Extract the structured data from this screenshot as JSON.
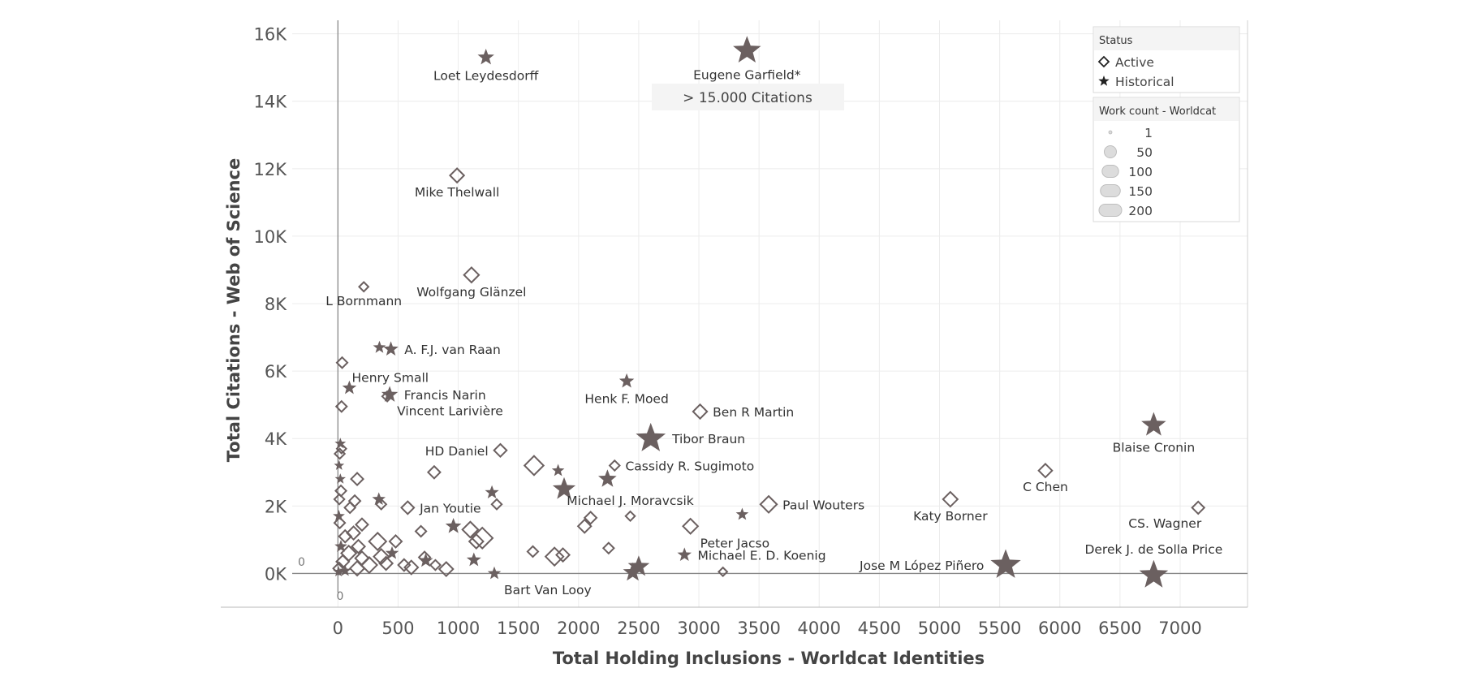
{
  "chart_data": {
    "type": "scatter",
    "xlabel": "Total Holding Inclusions - Worldcat Identities",
    "ylabel": "Total Citations - Web of Science",
    "xlim": [
      -380,
      7560
    ],
    "ylim": [
      -1000,
      16400
    ],
    "x_ticks": [
      0,
      500,
      1000,
      1500,
      2000,
      2500,
      3000,
      3500,
      4000,
      4500,
      5000,
      5500,
      6000,
      6500,
      7000
    ],
    "y_ticks": [
      0,
      2000,
      4000,
      6000,
      8000,
      10000,
      12000,
      14000,
      16000
    ],
    "y_tick_labels": [
      "0K",
      "2K",
      "4K",
      "6K",
      "8K",
      "10K",
      "12K",
      "14K",
      "16K"
    ],
    "zero_labels": {
      "x": "0",
      "y": "0"
    },
    "mark_color": "#6b6060",
    "grid": true,
    "annotation": "> 15.000 Citations",
    "legend": {
      "placement": "top-right",
      "status_title": "Status",
      "status_items": [
        {
          "label": "Active",
          "shape": "diamond"
        },
        {
          "label": "Historical",
          "shape": "star"
        }
      ],
      "size_title": "Work count - Worldcat",
      "size_items": [
        {
          "label": "1",
          "count": 1
        },
        {
          "label": "50",
          "count": 50
        },
        {
          "label": "100",
          "count": 100
        },
        {
          "label": "150",
          "count": 150
        },
        {
          "label": "200",
          "count": 200
        }
      ]
    },
    "points": [
      {
        "name": "Loet Leydesdorff",
        "x": 1230,
        "y": 15300,
        "shape": "star",
        "count": 25,
        "label_pos": "below"
      },
      {
        "name": "Eugene Garfield*",
        "x": 3400,
        "y": 15500,
        "shape": "star",
        "count": 110,
        "label_pos": "below"
      },
      {
        "name": "Mike Thelwall",
        "x": 990,
        "y": 11800,
        "shape": "diamond",
        "count": 25,
        "label_pos": "below"
      },
      {
        "name": "Wolfgang Glänzel",
        "x": 1110,
        "y": 8850,
        "shape": "diamond",
        "count": 30,
        "label_pos": "below"
      },
      {
        "name": "L Bornmann",
        "x": 215,
        "y": 8500,
        "shape": "diamond",
        "count": 6,
        "label_pos": "below"
      },
      {
        "name": "A. F.J. van Raan",
        "x": 440,
        "y": 6650,
        "shape": "star",
        "count": 18,
        "label_pos": "right"
      },
      {
        "name": "",
        "x": 345,
        "y": 6700,
        "shape": "star",
        "count": 10
      },
      {
        "name": "Henry Small",
        "x": 35,
        "y": 6250,
        "shape": "diamond",
        "count": 10,
        "label_pos": "below-right"
      },
      {
        "name": "Francis Narin",
        "x": 430,
        "y": 5300,
        "shape": "star",
        "count": 25,
        "label_pos": "right"
      },
      {
        "name": "Vincent Larivière",
        "x": 410,
        "y": 5250,
        "shape": "diamond",
        "count": 8,
        "label_pos": "below-right"
      },
      {
        "name": "",
        "x": 95,
        "y": 5500,
        "shape": "star",
        "count": 15
      },
      {
        "name": "",
        "x": 30,
        "y": 4950,
        "shape": "diamond",
        "count": 10
      },
      {
        "name": "Henk F. Moed",
        "x": 2400,
        "y": 5700,
        "shape": "star",
        "count": 18,
        "label_pos": "below"
      },
      {
        "name": "Ben R Martin",
        "x": 3010,
        "y": 4800,
        "shape": "diamond",
        "count": 25,
        "label_pos": "right"
      },
      {
        "name": "Tibor Braun",
        "x": 2600,
        "y": 4000,
        "shape": "star",
        "count": 130,
        "label_pos": "right"
      },
      {
        "name": "Blaise Cronin",
        "x": 6780,
        "y": 4400,
        "shape": "star",
        "count": 80,
        "label_pos": "below"
      },
      {
        "name": "HD Daniel",
        "x": 1350,
        "y": 3650,
        "shape": "diamond",
        "count": 18,
        "label_pos": "left"
      },
      {
        "name": "Cassidy R. Sugimoto",
        "x": 2300,
        "y": 3200,
        "shape": "diamond",
        "count": 8,
        "label_pos": "right"
      },
      {
        "name": "",
        "x": 1630,
        "y": 3200,
        "shape": "diamond",
        "count": 60
      },
      {
        "name": "",
        "x": 1830,
        "y": 3050,
        "shape": "star",
        "count": 10
      },
      {
        "name": "",
        "x": 800,
        "y": 3000,
        "shape": "diamond",
        "count": 16
      },
      {
        "name": "",
        "x": 2240,
        "y": 2800,
        "shape": "star",
        "count": 35
      },
      {
        "name": "",
        "x": 1880,
        "y": 2500,
        "shape": "star",
        "count": 65
      },
      {
        "name": "Michael J. Moravcsik",
        "x": 2430,
        "y": 1700,
        "shape": "diamond",
        "count": 6,
        "label_pos": "above"
      },
      {
        "name": "C Chen",
        "x": 5880,
        "y": 3050,
        "shape": "diamond",
        "count": 22,
        "label_pos": "below"
      },
      {
        "name": "Katy Borner",
        "x": 5090,
        "y": 2200,
        "shape": "diamond",
        "count": 28,
        "label_pos": "below"
      },
      {
        "name": "Paul Wouters",
        "x": 3580,
        "y": 2050,
        "shape": "diamond",
        "count": 40,
        "label_pos": "right"
      },
      {
        "name": "Jan Youtie",
        "x": 580,
        "y": 1950,
        "shape": "diamond",
        "count": 18,
        "label_pos": "right"
      },
      {
        "name": "CS. Wagner",
        "x": 7150,
        "y": 1950,
        "shape": "diamond",
        "count": 16,
        "label_pos": "below-left"
      },
      {
        "name": "Peter Jacso",
        "x": 2930,
        "y": 1400,
        "shape": "diamond",
        "count": 30,
        "label_pos": "below-right"
      },
      {
        "name": "",
        "x": 3360,
        "y": 1750,
        "shape": "star",
        "count": 10
      },
      {
        "name": "Michael E. D. Koenig",
        "x": 2880,
        "y": 550,
        "shape": "star",
        "count": 15,
        "label_pos": "right"
      },
      {
        "name": "Jose M López Piñero",
        "x": 5550,
        "y": 250,
        "shape": "star",
        "count": 135,
        "label_pos": "left"
      },
      {
        "name": "Derek J. de Solla Price",
        "x": 6780,
        "y": -50,
        "shape": "star",
        "count": 120,
        "label_pos": "above"
      },
      {
        "name": "Bart Van Looy",
        "x": 1300,
        "y": 0,
        "shape": "star",
        "count": 12,
        "label_pos": "below-right"
      },
      {
        "name": "",
        "x": 2500,
        "y": 200,
        "shape": "star",
        "count": 55
      },
      {
        "name": "",
        "x": 2450,
        "y": 30,
        "shape": "star",
        "count": 40
      },
      {
        "name": "",
        "x": 3200,
        "y": 50,
        "shape": "diamond",
        "count": 4
      },
      {
        "name": "",
        "x": 1800,
        "y": 500,
        "shape": "diamond",
        "count": 50
      },
      {
        "name": "",
        "x": 1870,
        "y": 550,
        "shape": "diamond",
        "count": 20
      },
      {
        "name": "",
        "x": 1620,
        "y": 650,
        "shape": "diamond",
        "count": 10
      },
      {
        "name": "",
        "x": 2250,
        "y": 750,
        "shape": "diamond",
        "count": 10
      },
      {
        "name": "",
        "x": 2050,
        "y": 1400,
        "shape": "diamond",
        "count": 20
      },
      {
        "name": "",
        "x": 2100,
        "y": 1650,
        "shape": "diamond",
        "count": 15
      },
      {
        "name": "",
        "x": 1280,
        "y": 2400,
        "shape": "star",
        "count": 14
      },
      {
        "name": "",
        "x": 1320,
        "y": 2050,
        "shape": "diamond",
        "count": 8
      },
      {
        "name": "",
        "x": 1200,
        "y": 1050,
        "shape": "diamond",
        "count": 75
      },
      {
        "name": "",
        "x": 1100,
        "y": 1300,
        "shape": "diamond",
        "count": 35
      },
      {
        "name": "",
        "x": 1150,
        "y": 950,
        "shape": "diamond",
        "count": 25
      },
      {
        "name": "",
        "x": 960,
        "y": 1400,
        "shape": "star",
        "count": 22
      },
      {
        "name": "",
        "x": 1130,
        "y": 400,
        "shape": "star",
        "count": 16
      },
      {
        "name": "",
        "x": 900,
        "y": 130,
        "shape": "diamond",
        "count": 24
      },
      {
        "name": "",
        "x": 810,
        "y": 250,
        "shape": "diamond",
        "count": 8
      },
      {
        "name": "",
        "x": 730,
        "y": 380,
        "shape": "star",
        "count": 16
      },
      {
        "name": "",
        "x": 720,
        "y": 480,
        "shape": "diamond",
        "count": 12
      },
      {
        "name": "",
        "x": 690,
        "y": 1250,
        "shape": "diamond",
        "count": 10
      },
      {
        "name": "",
        "x": 610,
        "y": 180,
        "shape": "diamond",
        "count": 22
      },
      {
        "name": "",
        "x": 550,
        "y": 250,
        "shape": "diamond",
        "count": 14
      },
      {
        "name": "",
        "x": 480,
        "y": 950,
        "shape": "diamond",
        "count": 16
      },
      {
        "name": "",
        "x": 340,
        "y": 2200,
        "shape": "star",
        "count": 12
      },
      {
        "name": "",
        "x": 360,
        "y": 2050,
        "shape": "diamond",
        "count": 8
      },
      {
        "name": "",
        "x": 330,
        "y": 950,
        "shape": "diamond",
        "count": 45
      },
      {
        "name": "",
        "x": 360,
        "y": 500,
        "shape": "diamond",
        "count": 30
      },
      {
        "name": "",
        "x": 400,
        "y": 300,
        "shape": "diamond",
        "count": 20
      },
      {
        "name": "",
        "x": 450,
        "y": 600,
        "shape": "star",
        "count": 12
      },
      {
        "name": "",
        "x": 260,
        "y": 250,
        "shape": "diamond",
        "count": 35
      },
      {
        "name": "",
        "x": 200,
        "y": 1450,
        "shape": "diamond",
        "count": 16
      },
      {
        "name": "",
        "x": 160,
        "y": 2800,
        "shape": "diamond",
        "count": 16
      },
      {
        "name": "",
        "x": 140,
        "y": 2150,
        "shape": "diamond",
        "count": 12
      },
      {
        "name": "",
        "x": 100,
        "y": 1950,
        "shape": "diamond",
        "count": 10
      },
      {
        "name": "",
        "x": 130,
        "y": 1200,
        "shape": "diamond",
        "count": 20
      },
      {
        "name": "",
        "x": 170,
        "y": 800,
        "shape": "diamond",
        "count": 20
      },
      {
        "name": "",
        "x": 200,
        "y": 450,
        "shape": "diamond",
        "count": 22
      },
      {
        "name": "",
        "x": 160,
        "y": 150,
        "shape": "diamond",
        "count": 26
      },
      {
        "name": "",
        "x": 90,
        "y": 600,
        "shape": "diamond",
        "count": 30
      },
      {
        "name": "",
        "x": 60,
        "y": 1100,
        "shape": "diamond",
        "count": 16
      },
      {
        "name": "",
        "x": 40,
        "y": 350,
        "shape": "diamond",
        "count": 18
      },
      {
        "name": "",
        "x": 25,
        "y": 2450,
        "shape": "diamond",
        "count": 10
      },
      {
        "name": "",
        "x": 30,
        "y": 3700,
        "shape": "diamond",
        "count": 6
      },
      {
        "name": "",
        "x": 20,
        "y": 3850,
        "shape": "star",
        "count": 6
      },
      {
        "name": "",
        "x": 15,
        "y": 3550,
        "shape": "diamond",
        "count": 8
      },
      {
        "name": "",
        "x": 10,
        "y": 3200,
        "shape": "star",
        "count": 4
      },
      {
        "name": "",
        "x": 20,
        "y": 2800,
        "shape": "star",
        "count": 5
      },
      {
        "name": "",
        "x": 12,
        "y": 2200,
        "shape": "diamond",
        "count": 8
      },
      {
        "name": "",
        "x": 8,
        "y": 1700,
        "shape": "star",
        "count": 8
      },
      {
        "name": "",
        "x": 15,
        "y": 1500,
        "shape": "diamond",
        "count": 10
      },
      {
        "name": "",
        "x": 25,
        "y": 800,
        "shape": "star",
        "count": 10
      },
      {
        "name": "",
        "x": 10,
        "y": 150,
        "shape": "diamond",
        "count": 14
      },
      {
        "name": "",
        "x": 5,
        "y": 50,
        "shape": "star",
        "count": 5
      },
      {
        "name": "",
        "x": 60,
        "y": 80,
        "shape": "star",
        "count": 8
      }
    ]
  }
}
